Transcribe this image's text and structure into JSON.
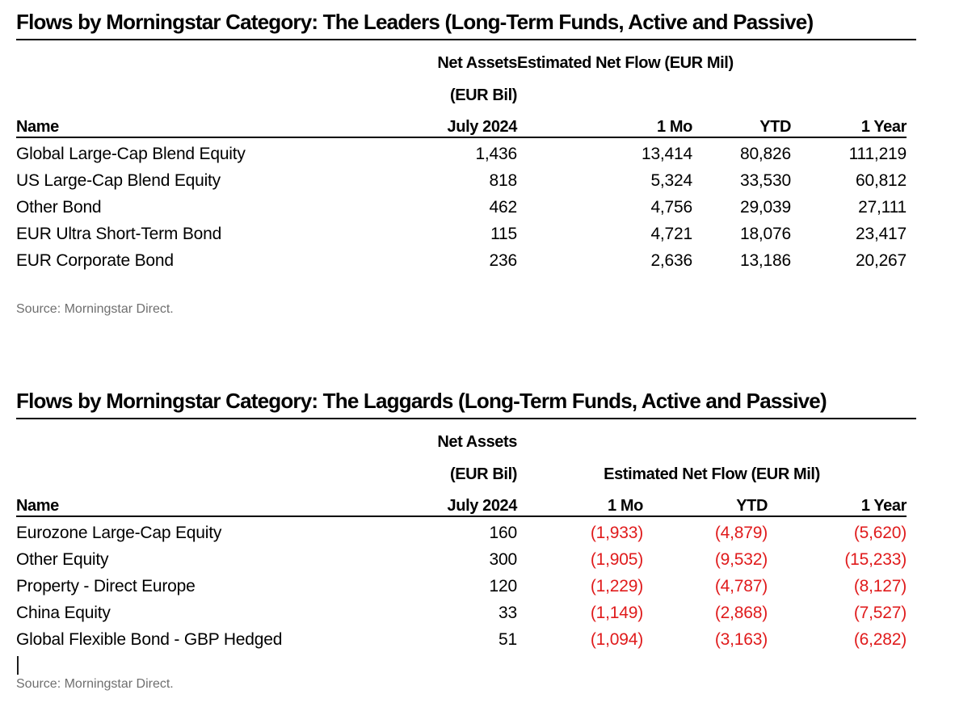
{
  "colors": {
    "negative_value": "#e01b1c",
    "rule": "#000000",
    "source_text": "#6f6f6f",
    "text": "#000000"
  },
  "tables": [
    {
      "title": "Flows by Morningstar Category: The Leaders (Long-Term Funds, Active and Passive)",
      "header": {
        "name_label": "Name",
        "net_assets_label": "Net Assets",
        "net_assets_unit": "(EUR Bil)",
        "date_label": "July 2024",
        "flow_group_label": "Estimated Net Flow (EUR Mil)",
        "flow_cols": [
          "1 Mo",
          "YTD",
          "1 Year"
        ]
      },
      "rows": [
        {
          "name": "Global Large-Cap Blend Equity",
          "net_assets": "1,436",
          "mo1": "13,414",
          "ytd": "80,826",
          "year1": "111,219",
          "negative": false
        },
        {
          "name": "US Large-Cap Blend Equity",
          "net_assets": "818",
          "mo1": "5,324",
          "ytd": "33,530",
          "year1": "60,812",
          "negative": false
        },
        {
          "name": "Other Bond",
          "net_assets": "462",
          "mo1": "4,756",
          "ytd": "29,039",
          "year1": "27,111",
          "negative": false
        },
        {
          "name": "EUR Ultra Short-Term Bond",
          "net_assets": "115",
          "mo1": "4,721",
          "ytd": "18,076",
          "year1": "23,417",
          "negative": false
        },
        {
          "name": "EUR Corporate Bond",
          "net_assets": "236",
          "mo1": "2,636",
          "ytd": "13,186",
          "year1": "20,267",
          "negative": false
        }
      ],
      "source": "Source: Morningstar Direct."
    },
    {
      "title": "Flows by Morningstar Category: The Laggards (Long-Term Funds, Active and Passive)",
      "header": {
        "name_label": "Name",
        "net_assets_label": "Net Assets",
        "net_assets_unit": "(EUR Bil)",
        "date_label": "July 2024",
        "flow_group_label": "Estimated Net Flow (EUR Mil)",
        "flow_cols": [
          "1 Mo",
          "YTD",
          "1 Year"
        ]
      },
      "rows": [
        {
          "name": "Eurozone Large-Cap Equity",
          "net_assets": "160",
          "mo1": "(1,933)",
          "ytd": "(4,879)",
          "year1": "(5,620)",
          "negative": true
        },
        {
          "name": "Other Equity",
          "net_assets": "300",
          "mo1": "(1,905)",
          "ytd": "(9,532)",
          "year1": "(15,233)",
          "negative": true
        },
        {
          "name": "Property - Direct Europe",
          "net_assets": "120",
          "mo1": "(1,229)",
          "ytd": "(4,787)",
          "year1": "(8,127)",
          "negative": true
        },
        {
          "name": "China Equity",
          "net_assets": "33",
          "mo1": "(1,149)",
          "ytd": "(2,868)",
          "year1": "(7,527)",
          "negative": true
        },
        {
          "name": "Global Flexible Bond - GBP Hedged",
          "net_assets": "51",
          "mo1": "(1,094)",
          "ytd": "(3,163)",
          "year1": "(6,282)",
          "negative": true
        }
      ],
      "source": "Source: Morningstar Direct."
    }
  ]
}
